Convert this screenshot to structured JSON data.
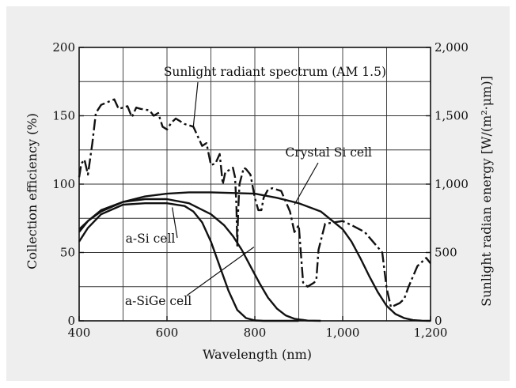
{
  "chart_data": {
    "type": "line",
    "xlabel": "Wavelength (nm)",
    "ylabel_left": "Collection efficiency (%)",
    "ylabel_right": "Sunlight radian energy [W/(m²·μm)]",
    "xlim": [
      400,
      1200
    ],
    "ylim_left": [
      0,
      200
    ],
    "ylim_right": [
      0,
      2000
    ],
    "x_ticks": [
      400,
      600,
      800,
      1000,
      1200
    ],
    "x_tick_labels": [
      "400",
      "600",
      "800",
      "1,000",
      "1,200"
    ],
    "y_left_ticks": [
      0,
      50,
      100,
      150,
      200
    ],
    "y_left_tick_labels": [
      "0",
      "50",
      "100",
      "150",
      "200"
    ],
    "y_right_ticks": [
      0,
      500,
      1000,
      1500,
      2000
    ],
    "y_right_tick_labels": [
      "0",
      "500",
      "1,000",
      "1,500",
      "2,000"
    ],
    "grid": true,
    "series": [
      {
        "name": "Sunlight radiant spectrum (AM 1.5)",
        "axis": "right",
        "style": "dash-dot",
        "x": [
          400,
          405,
          412,
          420,
          430,
          438,
          450,
          465,
          480,
          490,
          500,
          510,
          520,
          530,
          540,
          550,
          560,
          570,
          580,
          590,
          600,
          610,
          620,
          640,
          660,
          680,
          690,
          700,
          710,
          720,
          727,
          733,
          740,
          750,
          755,
          758,
          760,
          762,
          765,
          775,
          780,
          790,
          800,
          808,
          815,
          820,
          830,
          840,
          860,
          880,
          890,
          900,
          910,
          920,
          935,
          940,
          945,
          960,
          980,
          1000,
          1020,
          1050,
          1090,
          1100,
          1110,
          1130,
          1140,
          1150,
          1170,
          1190,
          1200
        ],
        "y": [
          1050,
          1150,
          1180,
          1070,
          1300,
          1520,
          1580,
          1600,
          1620,
          1550,
          1560,
          1570,
          1490,
          1560,
          1550,
          1545,
          1540,
          1500,
          1520,
          1420,
          1400,
          1450,
          1480,
          1440,
          1420,
          1280,
          1300,
          1140,
          1150,
          1220,
          1000,
          1090,
          1100,
          1120,
          1050,
          850,
          550,
          800,
          1000,
          1120,
          1110,
          1070,
          900,
          810,
          810,
          900,
          960,
          970,
          950,
          800,
          650,
          700,
          280,
          250,
          280,
          300,
          520,
          710,
          720,
          730,
          700,
          650,
          500,
          240,
          100,
          130,
          160,
          250,
          400,
          460,
          420
        ]
      },
      {
        "name": "a-Si cell",
        "axis": "left",
        "style": "solid",
        "x": [
          400,
          420,
          450,
          500,
          550,
          600,
          640,
          660,
          680,
          700,
          720,
          740,
          760,
          780,
          800,
          820,
          840,
          900
        ],
        "y": [
          58,
          68,
          78,
          85,
          86,
          86,
          84,
          80,
          72,
          58,
          40,
          22,
          8,
          2,
          0.3,
          0,
          0,
          0
        ]
      },
      {
        "name": "a-SiGe cell",
        "axis": "left",
        "style": "solid",
        "x": [
          400,
          420,
          450,
          500,
          550,
          600,
          650,
          700,
          730,
          750,
          770,
          790,
          810,
          830,
          850,
          870,
          890,
          920,
          950
        ],
        "y": [
          65,
          73,
          81,
          87,
          89,
          89,
          86,
          78,
          70,
          62,
          52,
          40,
          28,
          17,
          9,
          4,
          1.5,
          0.2,
          0
        ]
      },
      {
        "name": "Crystal Si cell",
        "axis": "left",
        "style": "solid",
        "x": [
          400,
          420,
          450,
          500,
          550,
          600,
          650,
          700,
          800,
          850,
          900,
          950,
          1000,
          1020,
          1040,
          1060,
          1080,
          1100,
          1120,
          1140,
          1160,
          1180,
          1200
        ],
        "y": [
          67,
          73,
          80,
          87,
          91,
          93,
          94,
          94,
          93,
          90,
          86,
          80,
          67,
          58,
          46,
          33,
          21,
          11,
          5,
          2,
          0.5,
          0.1,
          0
        ]
      }
    ],
    "annotations": [
      {
        "text": "Sunlight radiant spectrum (AM 1.5)",
        "points_to_x": 660,
        "points_to_y_right": 1420
      },
      {
        "text": "Crystal Si cell",
        "points_to_x": 890,
        "points_to_y_left": 85
      },
      {
        "text": "a-Si cell",
        "points_to_x": 612,
        "points_to_y_left": 83
      },
      {
        "text": "a-SiGe cell",
        "points_to_x": 798,
        "points_to_y_left": 54
      }
    ]
  }
}
